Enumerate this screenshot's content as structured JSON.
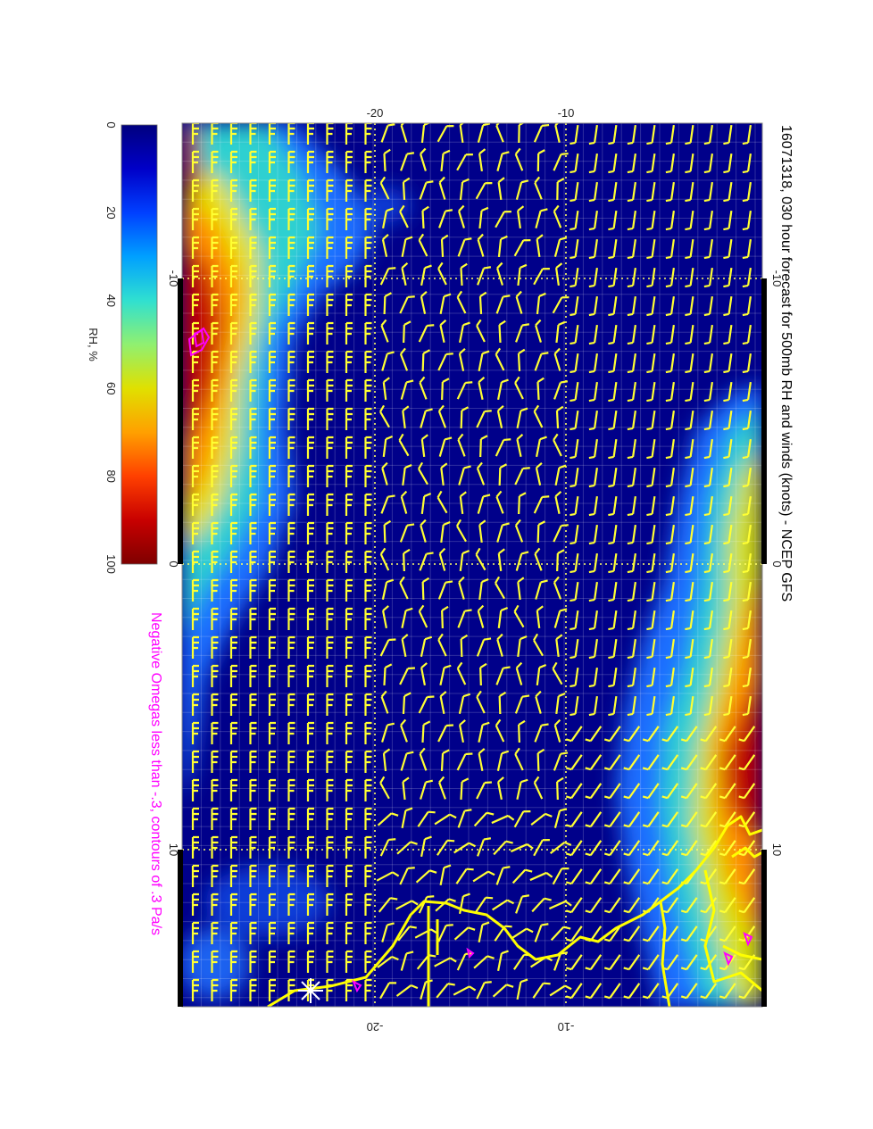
{
  "title": "16071318, 030 hour forecast for 500mb RH and winds (knots) - NCEP GFS",
  "omega_note": "Negative Omegas less than -.3, contours of .3 Pa/s",
  "colorbar": {
    "label": "RH, %",
    "ticks": [
      "0",
      "20",
      "40",
      "60",
      "80",
      "100"
    ],
    "colors": [
      "#00007f",
      "#0000c8",
      "#0040ff",
      "#00a0ff",
      "#30e0d0",
      "#90f070",
      "#e0e000",
      "#ffa000",
      "#ff4000",
      "#c80000",
      "#7f0000"
    ]
  },
  "axes": {
    "top_ticks": [
      "-20",
      "-10"
    ],
    "bottom_ticks": [
      "-20",
      "-10"
    ],
    "left_ticks": [
      "-10",
      "0",
      "10"
    ],
    "right_ticks": [
      "-10",
      "0",
      "10"
    ]
  },
  "colors": {
    "barb": "#ffff33",
    "coast": "#ffff00",
    "omega": "#ff00ff",
    "background_field": "#00008a"
  }
}
